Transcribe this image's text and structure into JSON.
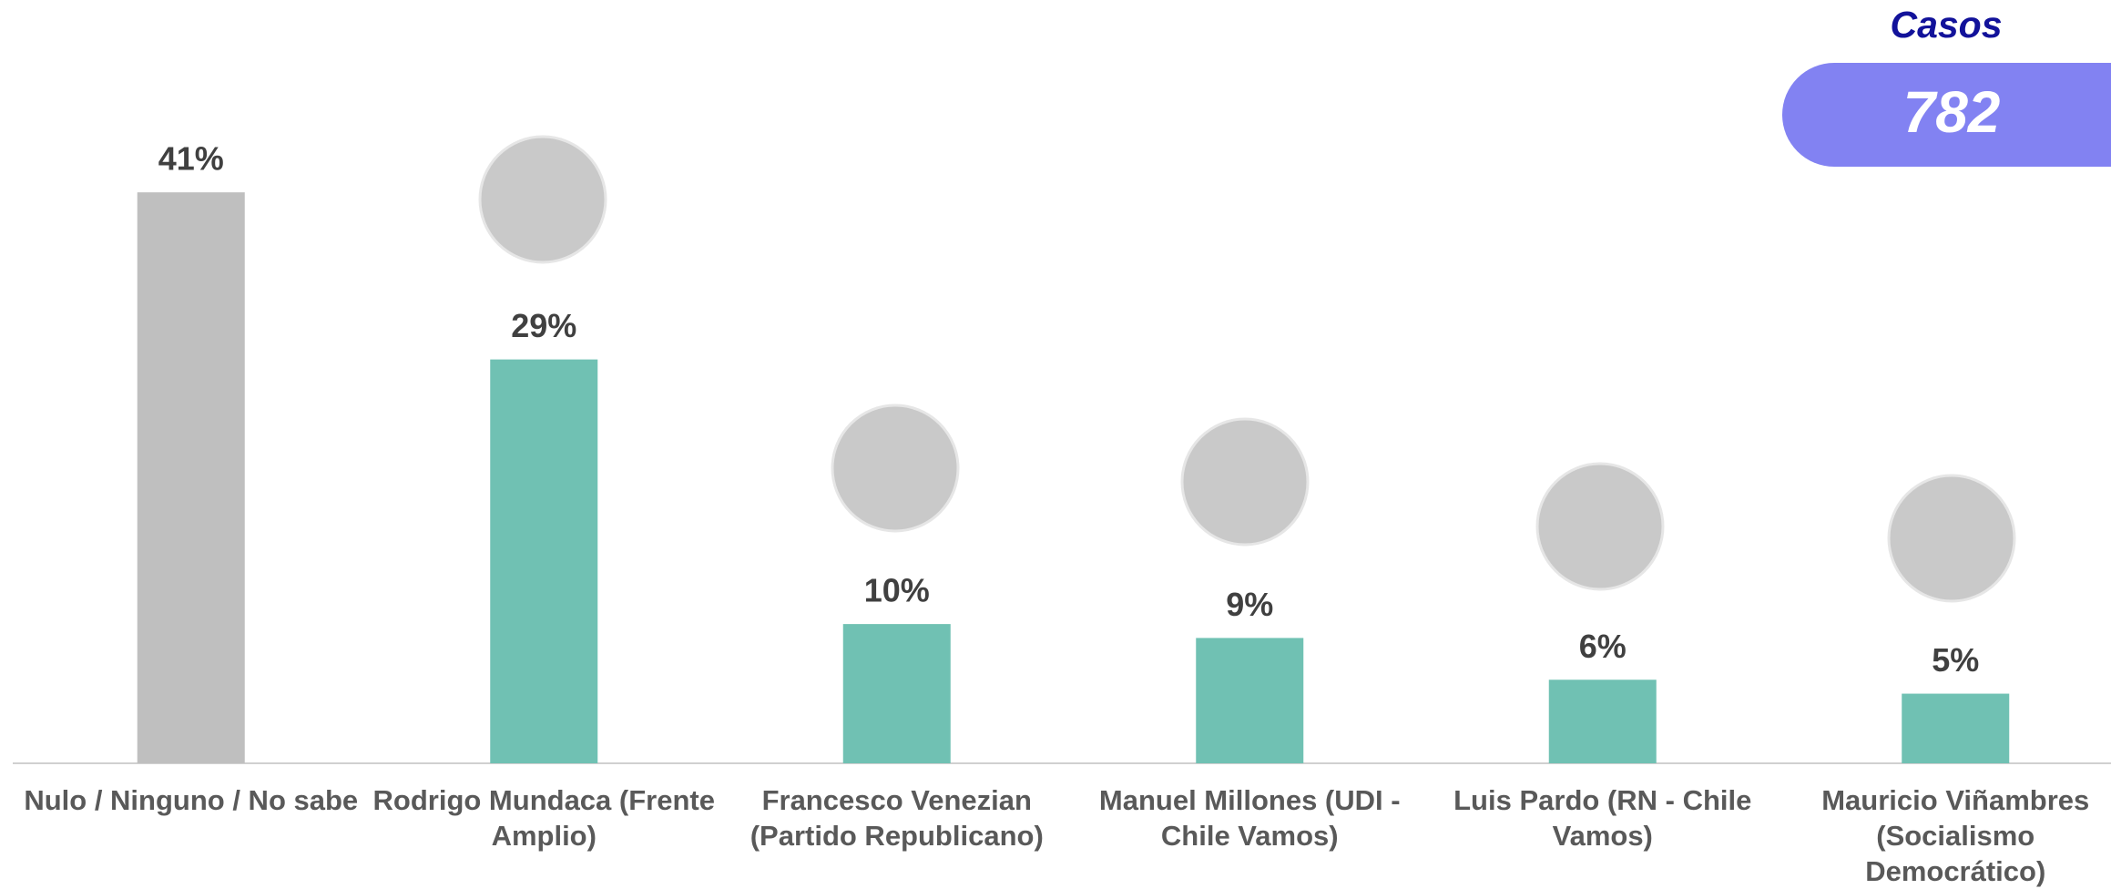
{
  "chart_data": {
    "type": "bar",
    "categories": [
      "Nulo / Ninguno / No sabe",
      "Rodrigo Mundaca (Frente Amplio)",
      "Francesco Venezian (Partido Republicano)",
      "Manuel Millones (UDI - Chile Vamos)",
      "Luis Pardo (RN - Chile Vamos)",
      "Mauricio Viñambres (Socialismo Democrático)"
    ],
    "values": [
      41,
      29,
      10,
      9,
      6,
      5
    ],
    "value_labels": [
      "41%",
      "29%",
      "10%",
      "9%",
      "6%",
      "5%"
    ],
    "colors": [
      "#bfbfbf",
      "#70c1b3",
      "#70c1b3",
      "#70c1b3",
      "#70c1b3",
      "#70c1b3"
    ],
    "ylim": [
      0,
      45
    ],
    "cases_label": "Casos",
    "cases": 782
  }
}
